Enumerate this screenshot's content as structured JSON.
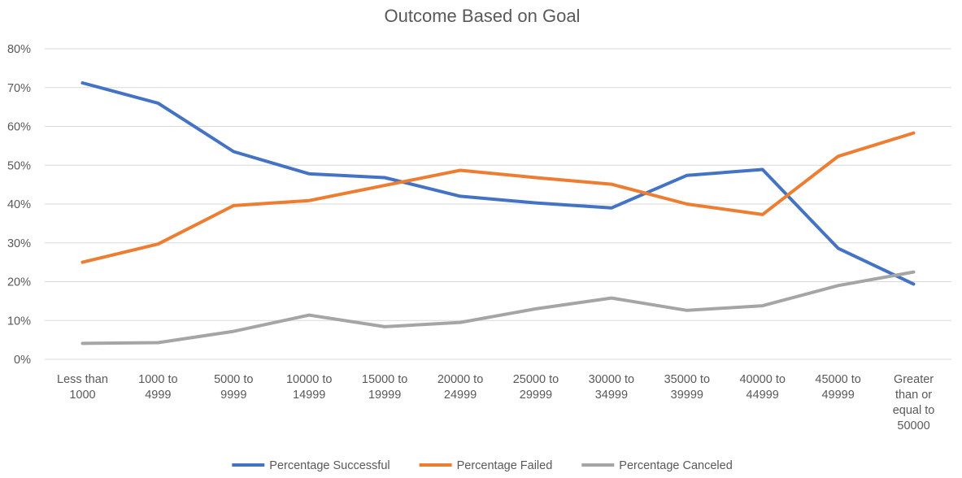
{
  "chart_data": {
    "type": "line",
    "title": "Outcome Based on Goal",
    "xlabel": "",
    "ylabel": "",
    "categories": [
      [
        "Less than",
        "1000"
      ],
      [
        "1000 to",
        "4999"
      ],
      [
        "5000 to",
        "9999"
      ],
      [
        "10000 to",
        "14999"
      ],
      [
        "15000 to",
        "19999"
      ],
      [
        "20000 to",
        "24999"
      ],
      [
        "25000 to",
        "29999"
      ],
      [
        "30000 to",
        "34999"
      ],
      [
        "35000 to",
        "39999"
      ],
      [
        "40000 to",
        "44999"
      ],
      [
        "45000 to",
        "49999"
      ],
      [
        "Greater",
        "than or",
        "equal to",
        "50000"
      ]
    ],
    "ylim": [
      0,
      80
    ],
    "yticks": [
      0,
      10,
      20,
      30,
      40,
      50,
      60,
      70,
      80
    ],
    "ytick_suffix": "%",
    "grid": true,
    "legend": "bottom",
    "series": [
      {
        "name": "Percentage Successful",
        "color": "#4472C4",
        "values": [
          71.2,
          66.0,
          53.5,
          47.8,
          46.8,
          42.0,
          40.3,
          39.0,
          47.4,
          48.9,
          28.6,
          19.4
        ]
      },
      {
        "name": "Percentage Failed",
        "color": "#ED7D31",
        "values": [
          25.0,
          29.7,
          39.6,
          40.9,
          44.8,
          48.7,
          46.8,
          45.1,
          40.0,
          37.3,
          52.3,
          58.3
        ]
      },
      {
        "name": "Percentage Canceled",
        "color": "#A5A5A5",
        "values": [
          4.1,
          4.3,
          7.2,
          11.4,
          8.4,
          9.5,
          13.0,
          15.8,
          12.6,
          13.8,
          19.0,
          22.5
        ]
      }
    ]
  }
}
